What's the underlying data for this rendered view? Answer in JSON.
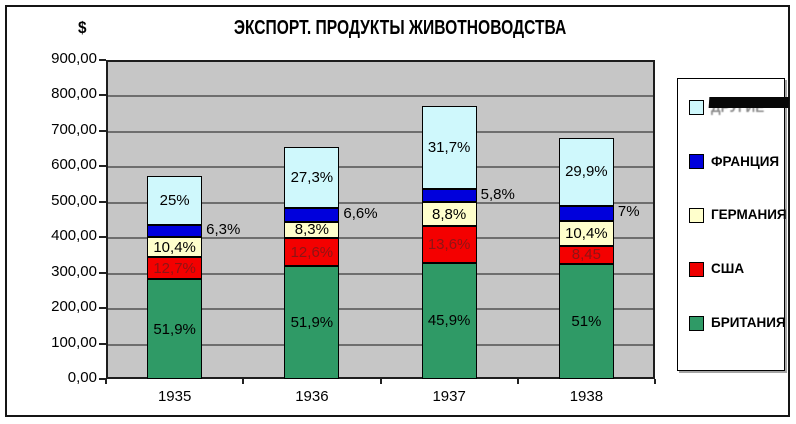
{
  "header": {
    "unit_label": "$",
    "title": "ЭКСПОРТ. ПРОДУКТЫ ЖИВОТНОВОДСТВА"
  },
  "colors": {
    "plot_bg": "#C6C6C6",
    "gridline": "#6E6E6E",
    "frame_border": "#151515",
    "plot_border": "#1D1D1D",
    "red_segment_label_text": "#8E1414",
    "legend_bg": "#FFFFFF"
  },
  "chart_data": {
    "type": "bar",
    "subtype": "stacked",
    "title": "ЭКСПОРТ. ПРОДУКТЫ ЖИВОТНОВОДСТВА",
    "y_unit": "$",
    "ylim": [
      0,
      900
    ],
    "y_tick_step": 100,
    "y_tick_labels": [
      "0,00",
      "100,00",
      "200,00",
      "300,00",
      "400,00",
      "500,00",
      "600,00",
      "700,00",
      "800,00",
      "900,00"
    ],
    "categories": [
      "1935",
      "1936",
      "1937",
      "1938"
    ],
    "series_bottom_to_top": [
      {
        "name": "БРИТАНИЯ",
        "color": "#2F9A66",
        "values": [
          282,
          319,
          328,
          324
        ],
        "segment_labels": [
          "51,9%",
          "51,9%",
          "45,9%",
          "51%"
        ],
        "label_placement": "inside",
        "label_color": "#000000"
      },
      {
        "name": "США",
        "color": "#F40000",
        "values": [
          61,
          78,
          104,
          52
        ],
        "segment_labels": [
          "12,7%",
          "12,6%",
          "13,6%",
          "8,45"
        ],
        "label_placement": "inside",
        "label_color": "#8E1414"
      },
      {
        "name": "ГЕРМАНИЯ",
        "color": "#FFFFCC",
        "values": [
          58,
          47,
          66,
          69
        ],
        "segment_labels": [
          "10,4%",
          "8,3%",
          "8,8%",
          "10,4%"
        ],
        "label_placement": "inside",
        "label_color": "#000000"
      },
      {
        "name": "ФРАНЦИЯ",
        "color": "#0000DC",
        "values": [
          33,
          38,
          38,
          44
        ],
        "segment_labels": [
          "6,3%",
          "6,6%",
          "5,8%",
          "7%"
        ],
        "label_placement": "outside-right",
        "label_color": "#000000"
      },
      {
        "name": "ДРУГИЕ",
        "color": "#CFF8FC",
        "values": [
          139,
          173,
          235,
          191
        ],
        "segment_labels": [
          "25%",
          "27,3%",
          "31,7%",
          "29,9%"
        ],
        "label_placement": "inside",
        "label_color": "#000000"
      }
    ],
    "approx_totals": [
      573,
      655,
      771,
      680
    ],
    "grid": "horizontal",
    "legend_position": "right"
  },
  "legend": {
    "items": [
      {
        "label": "ДРУГИЕ",
        "color": "#CFF8FC",
        "redacted": true
      },
      {
        "label": "ФРАНЦИЯ",
        "color": "#0000DC",
        "redacted": false
      },
      {
        "label": "ГЕРМАНИЯ",
        "color": "#FFFFCC",
        "redacted": false
      },
      {
        "label": "США",
        "color": "#EE0000",
        "redacted": false
      },
      {
        "label": "БРИТАНИЯ",
        "color": "#2F9A66",
        "redacted": false
      }
    ]
  }
}
